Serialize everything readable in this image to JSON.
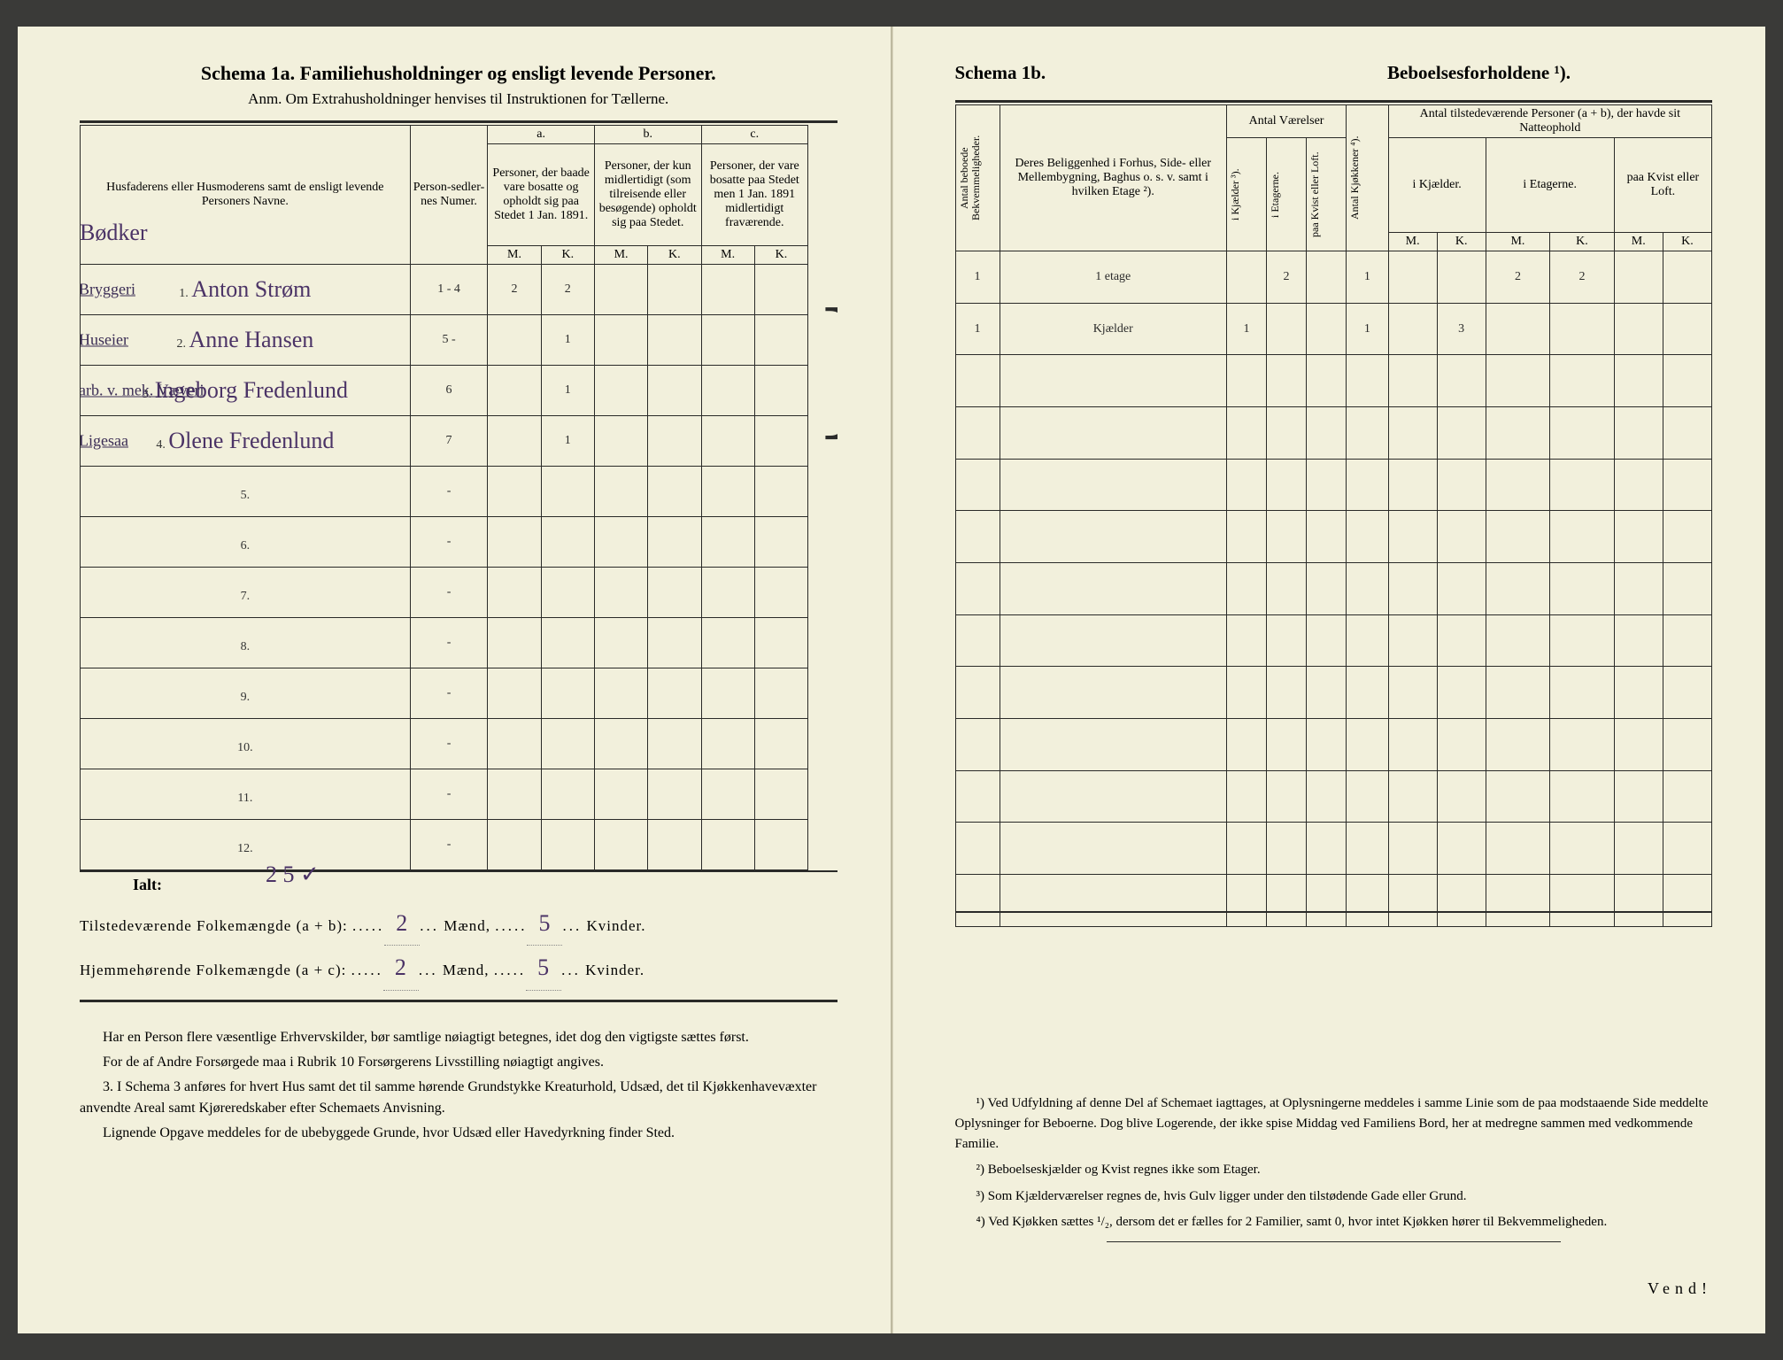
{
  "left": {
    "title": "Schema 1a.   Familiehusholdninger og ensligt levende Personer.",
    "subtitle": "Anm.  Om Extrahusholdninger henvises til Instruktionen for Tællerne.",
    "head": {
      "names": "Husfaderens eller Husmoderens samt de ensligt levende Personers Navne.",
      "numer": "Person-sedler-nes Numer.",
      "a_label": "a.",
      "a_text": "Personer, der baade vare bosatte og opholdt sig paa Stedet 1 Jan. 1891.",
      "b_label": "b.",
      "b_text": "Personer, der kun midlertidigt (som tilreisende eller besøgende) opholdt sig paa Stedet.",
      "c_label": "c.",
      "c_text": "Personer, der vare bosatte paa Stedet men 1 Jan. 1891 midlertidigt fraværende.",
      "M": "M.",
      "K": "K."
    },
    "bodker": "Bødker",
    "rows": [
      {
        "n": "1.",
        "margin": "Bryggeri",
        "name": "Anton Strøm",
        "numer": "1 - 4",
        "aM": "2",
        "aK": "2"
      },
      {
        "n": "2.",
        "margin": "Huseier",
        "name": "Anne Hansen",
        "numer": "5 -",
        "aM": "",
        "aK": "1"
      },
      {
        "n": "3.",
        "margin": "arb. v. mek. Væveri",
        "name": "Ingeborg Fredenlund",
        "numer": "6",
        "aM": "",
        "aK": "1"
      },
      {
        "n": "4.",
        "margin": "Ligesaa",
        "name": "Olene Fredenlund",
        "numer": "7",
        "aM": "",
        "aK": "1"
      },
      {
        "n": "5.",
        "margin": "",
        "name": "",
        "numer": "-",
        "aM": "",
        "aK": ""
      },
      {
        "n": "6.",
        "margin": "",
        "name": "",
        "numer": "-",
        "aM": "",
        "aK": ""
      },
      {
        "n": "7.",
        "margin": "",
        "name": "",
        "numer": "-",
        "aM": "",
        "aK": ""
      },
      {
        "n": "8.",
        "margin": "",
        "name": "",
        "numer": "-",
        "aM": "",
        "aK": ""
      },
      {
        "n": "9.",
        "margin": "",
        "name": "",
        "numer": "-",
        "aM": "",
        "aK": ""
      },
      {
        "n": "10.",
        "margin": "",
        "name": "",
        "numer": "-",
        "aM": "",
        "aK": ""
      },
      {
        "n": "11.",
        "margin": "",
        "name": "",
        "numer": "-",
        "aM": "",
        "aK": ""
      },
      {
        "n": "12.",
        "margin": "",
        "name": "",
        "numer": "-",
        "aM": "",
        "aK": ""
      }
    ],
    "ialt": "Ialt:",
    "ialt_hand": "2   5 ✓",
    "sum1_pre": "Tilstedeværende Folkemængde (a + b): ",
    "sum1_m": "2",
    "sum1_mid": " Mænd, ",
    "sum1_k": "5",
    "sum1_end": " Kvinder.",
    "sum2_pre": "Hjemmehørende Folkemængde (a + c): ",
    "sum2_m": "2",
    "sum2_k": "5",
    "notes": [
      "Har en Person flere væsentlige Erhvervskilder, bør samtlige nøiagtigt betegnes, idet dog den vigtigste sættes først.",
      "For de af Andre Forsørgede maa i Rubrik 10 Forsørgerens Livsstilling nøiagtigt angives.",
      "3. I Schema 3 anføres for hvert Hus samt det til samme hørende Grundstykke Kreaturhold, Udsæd, det til Kjøkkenhavevæxter anvendte Areal samt Kjøreredskaber efter Schemaets Anvisning.",
      "Lignende Opgave meddeles for de ubebyggede Grunde, hvor Udsæd eller Havedyrkning finder Sted."
    ]
  },
  "right": {
    "title_a": "Schema 1b.",
    "title_b": "Beboelsesforholdene ¹).",
    "head": {
      "antal_beboede": "Antal beboede Bekvemmeligheder.",
      "belig": "Deres Beliggenhed i Forhus, Side- eller Mellembygning, Baghus o. s. v. samt i hvilken Etage ²).",
      "antal_vaer": "Antal Værelser",
      "i_kj": "i Kjælder ³).",
      "i_et": "i Etagerne.",
      "paa_kv": "paa Kvist eller Loft.",
      "antal_kjok": "Antal Kjøkkener ⁴).",
      "antal_pers": "Antal tilstedeværende Personer (a + b), der havde sit Natteophold",
      "i_kj2": "i Kjælder.",
      "i_et2": "i Etagerne.",
      "paa_kv2": "paa Kvist eller Loft.",
      "M": "M.",
      "K": "K."
    },
    "rows": [
      {
        "c0": "1",
        "c1": "1 etage",
        "c2": "",
        "c3": "2",
        "c4": "",
        "c5": "1",
        "c6": "",
        "c7": "",
        "c8": "2",
        "c9": "2",
        "c10": "",
        "c11": ""
      },
      {
        "c0": "1",
        "c1": "Kjælder",
        "c2": "1",
        "c3": "",
        "c4": "",
        "c5": "1",
        "c6": "",
        "c7": "3",
        "c8": "",
        "c9": "",
        "c10": "",
        "c11": ""
      }
    ],
    "blank_rows": 11,
    "notes": [
      "¹) Ved Udfyldning af denne Del af Schemaet iagttages, at Oplysningerne meddeles i samme Linie som de paa modstaaende Side meddelte Oplysninger for Beboerne. Dog blive Logerende, der ikke spise Middag ved Familiens Bord, her at medregne sammen med vedkommende Familie.",
      "²) Beboelseskjælder og Kvist regnes ikke som Etager.",
      "³) Som Kjælderværelser regnes de, hvis Gulv ligger under den tilstødende Gade eller Grund.",
      "⁴) Ved Kjøkken sættes ¹/₂, dersom det er fælles for 2 Familier, samt 0, hvor intet Kjøkken hører til Bekvemmeligheden."
    ],
    "vend": "Vend!"
  }
}
